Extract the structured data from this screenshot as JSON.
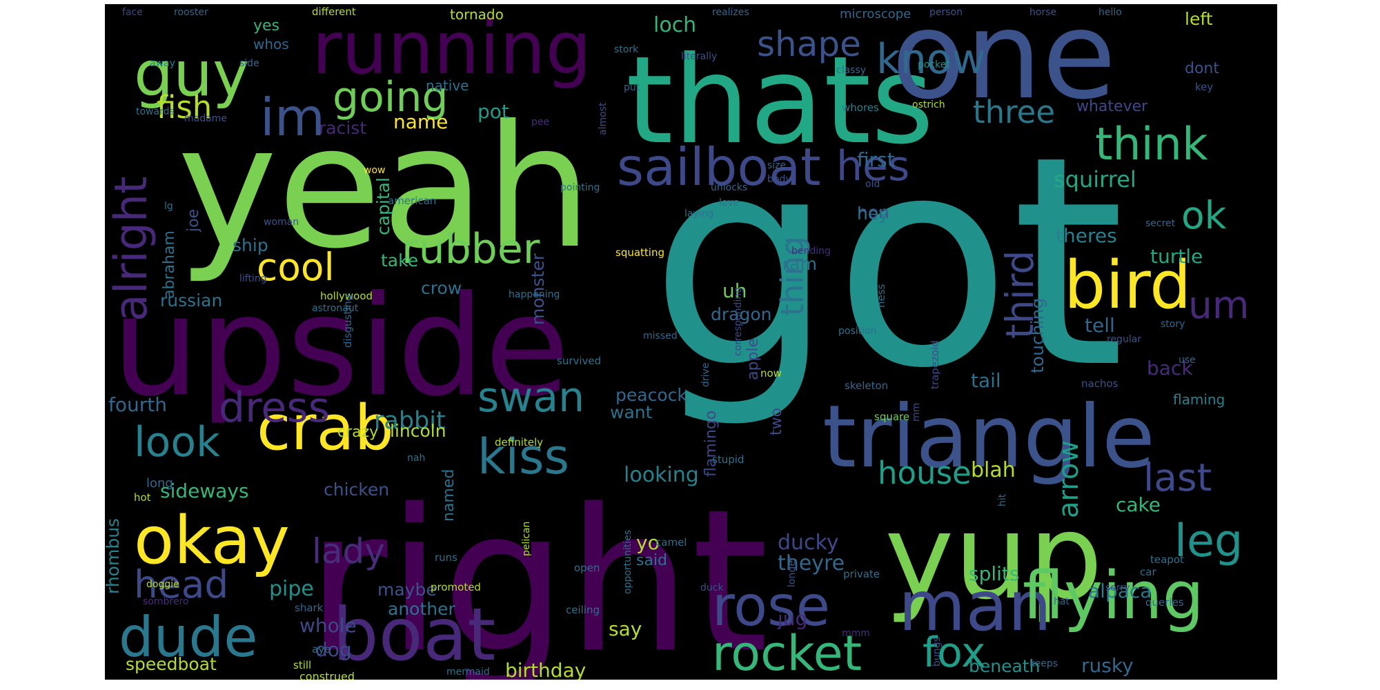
{
  "words": [
    {
      "text": "got",
      "color": "#21918c"
    },
    {
      "text": "right",
      "color": "#440154"
    },
    {
      "text": "yeah",
      "color": "#7ad151"
    },
    {
      "text": "upside",
      "color": "#440154"
    },
    {
      "text": "thats",
      "color": "#22a884"
    },
    {
      "text": "one",
      "color": "#3b528b"
    },
    {
      "text": "yup",
      "color": "#7ad151"
    },
    {
      "text": "triangle",
      "color": "#3b528b"
    },
    {
      "text": "boat",
      "color": "#482878"
    },
    {
      "text": "running",
      "color": "#440154"
    },
    {
      "text": "man",
      "color": "#3e4989"
    },
    {
      "text": "flying",
      "color": "#5ec962"
    },
    {
      "text": "bird",
      "color": "#fde725"
    },
    {
      "text": "okay",
      "color": "#fde725"
    },
    {
      "text": "guy",
      "color": "#7ad151"
    },
    {
      "text": "crab",
      "color": "#fde725"
    },
    {
      "text": "rose",
      "color": "#3e4989"
    },
    {
      "text": "dude",
      "color": "#2a788e"
    },
    {
      "text": "sailboat",
      "color": "#3e4989"
    },
    {
      "text": "rocket",
      "color": "#35b779"
    },
    {
      "text": "im",
      "color": "#3b528b"
    },
    {
      "text": "kiss",
      "color": "#2a788e"
    },
    {
      "text": "know",
      "color": "#31688e"
    },
    {
      "text": "think",
      "color": "#35b779"
    },
    {
      "text": "swan",
      "color": "#26828e"
    },
    {
      "text": "fox",
      "color": "#1f9e89"
    },
    {
      "text": "going",
      "color": "#6ece58"
    },
    {
      "text": "rubber",
      "color": "#6ece58"
    },
    {
      "text": "dress",
      "color": "#482878"
    },
    {
      "text": "look",
      "color": "#26828e"
    },
    {
      "text": "leg",
      "color": "#21918c"
    },
    {
      "text": "hes",
      "color": "#3e4989"
    },
    {
      "text": "cool",
      "color": "#fde725"
    },
    {
      "text": "alright",
      "color": "#482878"
    },
    {
      "text": "head",
      "color": "#3e4989"
    },
    {
      "text": "last",
      "color": "#3e4989"
    },
    {
      "text": "house",
      "color": "#1f9e89"
    },
    {
      "text": "shape",
      "color": "#3b528b"
    },
    {
      "text": "lady",
      "color": "#472c7a"
    },
    {
      "text": "third",
      "color": "#3e4989"
    },
    {
      "text": "ok",
      "color": "#22a884"
    },
    {
      "text": "um",
      "color": "#482878"
    },
    {
      "text": "three",
      "color": "#2a788e"
    },
    {
      "text": "arrow",
      "color": "#1f9e89"
    },
    {
      "text": "thing",
      "color": "#2c728e"
    },
    {
      "text": "fish",
      "color": "#b5de2b"
    },
    {
      "text": "rabbit",
      "color": "#26828e"
    },
    {
      "text": "squirrel",
      "color": "#22a884"
    },
    {
      "text": "birthday",
      "color": "#b5de2b"
    },
    {
      "text": "speedboat",
      "color": "#b5de2b"
    },
    {
      "text": "sideways",
      "color": "#35b779"
    },
    {
      "text": "whole",
      "color": "#3e4989"
    },
    {
      "text": "dog",
      "color": "#3e4989"
    },
    {
      "text": "looking",
      "color": "#26828e"
    },
    {
      "text": "ducky",
      "color": "#3e4989"
    },
    {
      "text": "theyre",
      "color": "#31688e"
    },
    {
      "text": "splits",
      "color": "#35b779"
    },
    {
      "text": "alpaca",
      "color": "#2a788e"
    },
    {
      "text": "rusky",
      "color": "#31688e"
    },
    {
      "text": "beneath",
      "color": "#21918c"
    },
    {
      "text": "jug",
      "color": "#482878"
    },
    {
      "text": "say",
      "color": "#b5de2b"
    },
    {
      "text": "another",
      "color": "#2c728e"
    },
    {
      "text": "maybe",
      "color": "#3b528b"
    },
    {
      "text": "pipe",
      "color": "#21918c"
    },
    {
      "text": "fourth",
      "color": "#31688e"
    },
    {
      "text": "rhombus",
      "color": "#26828e"
    },
    {
      "text": "tail",
      "color": "#2c728e"
    },
    {
      "text": "blah",
      "color": "#b5de2b"
    },
    {
      "text": "cake",
      "color": "#35b779"
    },
    {
      "text": "back",
      "color": "#472c7a"
    },
    {
      "text": "tell",
      "color": "#31688e"
    },
    {
      "text": "turtle",
      "color": "#22a884"
    },
    {
      "text": "theres",
      "color": "#26828e"
    },
    {
      "text": "touching",
      "color": "#31688e"
    },
    {
      "text": "peacock",
      "color": "#31688e"
    },
    {
      "text": "want",
      "color": "#2c728e"
    },
    {
      "text": "dragon",
      "color": "#31688e"
    },
    {
      "text": "uh",
      "color": "#6ece58"
    },
    {
      "text": "ram",
      "color": "#2c728e"
    },
    {
      "text": "monster",
      "color": "#3b528b"
    },
    {
      "text": "crow",
      "color": "#2c728e"
    },
    {
      "text": "take",
      "color": "#35b779"
    },
    {
      "text": "russian",
      "color": "#2c728e"
    },
    {
      "text": "ship",
      "color": "#2c728e"
    },
    {
      "text": "lincoln",
      "color": "#b5de2b"
    },
    {
      "text": "crazy",
      "color": "#b5de2b"
    },
    {
      "text": "chicken",
      "color": "#3b528b"
    },
    {
      "text": "name",
      "color": "#fde725"
    },
    {
      "text": "pot",
      "color": "#1f9e89"
    },
    {
      "text": "racist",
      "color": "#482878"
    },
    {
      "text": "capital",
      "color": "#35b779"
    },
    {
      "text": "abraham",
      "color": "#2c728e"
    },
    {
      "text": "joe",
      "color": "#3b528b"
    },
    {
      "text": "first",
      "color": "#31688e"
    },
    {
      "text": "non",
      "color": "#3b528b"
    },
    {
      "text": "hey",
      "color": "#2c728e"
    },
    {
      "text": "whatever",
      "color": "#3e4989"
    },
    {
      "text": "left",
      "color": "#b5de2b"
    },
    {
      "text": "dont",
      "color": "#3b528b"
    },
    {
      "text": "loch",
      "color": "#35b779"
    },
    {
      "text": "native",
      "color": "#2c728e"
    },
    {
      "text": "yes",
      "color": "#35b779"
    },
    {
      "text": "whos",
      "color": "#31688e"
    },
    {
      "text": "tornado",
      "color": "#b5de2b"
    },
    {
      "text": "microscope",
      "color": "#31688e"
    },
    {
      "text": "apple",
      "color": "#3e4989"
    },
    {
      "text": "two",
      "color": "#3e4989"
    },
    {
      "text": "flamingo",
      "color": "#3e4989"
    },
    {
      "text": "named",
      "color": "#2c728e"
    },
    {
      "text": "yo",
      "color": "#b5de2b"
    },
    {
      "text": "said",
      "color": "#2c728e"
    },
    {
      "text": "flaming",
      "color": "#26828e"
    },
    {
      "text": "long",
      "color": "#31688e"
    },
    {
      "text": "different",
      "color": "#b5de2b"
    },
    {
      "text": "rooster",
      "color": "#31688e"
    },
    {
      "text": "face",
      "color": "#3e4989"
    },
    {
      "text": "realizes",
      "color": "#31688e"
    },
    {
      "text": "person",
      "color": "#3b528b"
    },
    {
      "text": "horse",
      "color": "#3b528b"
    },
    {
      "text": "hello",
      "color": "#31688e"
    },
    {
      "text": "side",
      "color": "#31688e"
    },
    {
      "text": "away",
      "color": "#26828e"
    },
    {
      "text": "stork",
      "color": "#2c728e"
    },
    {
      "text": "literally",
      "color": "#3b528b"
    },
    {
      "text": "classy",
      "color": "#31688e"
    },
    {
      "text": "pocket",
      "color": "#21918c"
    },
    {
      "text": "key",
      "color": "#3b528b"
    },
    {
      "text": "ostrich",
      "color": "#b5de2b"
    },
    {
      "text": "whores",
      "color": "#26828e"
    },
    {
      "text": "put",
      "color": "#31688e"
    },
    {
      "text": "towards",
      "color": "#2c728e"
    },
    {
      "text": "madame",
      "color": "#3b528b"
    },
    {
      "text": "pee",
      "color": "#472c7a"
    },
    {
      "text": "almost",
      "color": "#3b528b"
    },
    {
      "text": "wow",
      "color": "#fde725"
    },
    {
      "text": "pointing",
      "color": "#2c728e"
    },
    {
      "text": "size",
      "color": "#31688e"
    },
    {
      "text": "body",
      "color": "#3b528b"
    },
    {
      "text": "old",
      "color": "#3b528b"
    },
    {
      "text": "unlocks",
      "color": "#31688e"
    },
    {
      "text": "american",
      "color": "#2c728e"
    },
    {
      "text": "love",
      "color": "#2c728e"
    },
    {
      "text": "lg",
      "color": "#2c728e"
    },
    {
      "text": "laying",
      "color": "#2c728e"
    },
    {
      "text": "secret",
      "color": "#31688e"
    },
    {
      "text": "woman",
      "color": "#3b528b"
    },
    {
      "text": "squatting",
      "color": "#fde725"
    },
    {
      "text": "bending",
      "color": "#472c7a"
    },
    {
      "text": "lifting",
      "color": "#3b528b"
    },
    {
      "text": "hollywood",
      "color": "#b5de2b"
    },
    {
      "text": "happening",
      "color": "#2c728e"
    },
    {
      "text": "astronaut",
      "color": "#2c728e"
    },
    {
      "text": "ness",
      "color": "#2c728e"
    },
    {
      "text": "story",
      "color": "#31688e"
    },
    {
      "text": "regular",
      "color": "#3b528b"
    },
    {
      "text": "missed",
      "color": "#31688e"
    },
    {
      "text": "position",
      "color": "#2c728e"
    },
    {
      "text": "corresponding",
      "color": "#3e4989"
    },
    {
      "text": "disgusting",
      "color": "#31688e"
    },
    {
      "text": "survived",
      "color": "#2c728e"
    },
    {
      "text": "use",
      "color": "#31688e"
    },
    {
      "text": "drive",
      "color": "#31688e"
    },
    {
      "text": "now",
      "color": "#b5de2b"
    },
    {
      "text": "skeleton",
      "color": "#31688e"
    },
    {
      "text": "trapezoid",
      "color": "#3e4989"
    },
    {
      "text": "nachos",
      "color": "#3b528b"
    },
    {
      "text": "definitely",
      "color": "#b5de2b"
    },
    {
      "text": "stupid",
      "color": "#2c728e"
    },
    {
      "text": "nah",
      "color": "#2c728e"
    },
    {
      "text": "square",
      "color": "#6ece58"
    },
    {
      "text": "mm",
      "color": "#3e4989"
    },
    {
      "text": "hit",
      "color": "#31688e"
    },
    {
      "text": "hot",
      "color": "#b5de2b"
    },
    {
      "text": "opportunities",
      "color": "#2c728e"
    },
    {
      "text": "pelican",
      "color": "#b5de2b"
    },
    {
      "text": "camel",
      "color": "#2c728e"
    },
    {
      "text": "runs",
      "color": "#2c728e"
    },
    {
      "text": "longer",
      "color": "#3b528b"
    },
    {
      "text": "teapot",
      "color": "#2c728e"
    },
    {
      "text": "open",
      "color": "#2c728e"
    },
    {
      "text": "private",
      "color": "#2c728e"
    },
    {
      "text": "car",
      "color": "#2c728e"
    },
    {
      "text": "doggie",
      "color": "#b5de2b"
    },
    {
      "text": "promoted",
      "color": "#b5de2b"
    },
    {
      "text": "duck",
      "color": "#3b528b"
    },
    {
      "text": "sorry",
      "color": "#3b528b"
    },
    {
      "text": "sombrero",
      "color": "#472c7a"
    },
    {
      "text": "hat",
      "color": "#31688e"
    },
    {
      "text": "queries",
      "color": "#31688e"
    },
    {
      "text": "shark",
      "color": "#31688e"
    },
    {
      "text": "ceiling",
      "color": "#2c728e"
    },
    {
      "text": "mmm",
      "color": "#472c7a"
    },
    {
      "text": "aye",
      "color": "#2c728e"
    },
    {
      "text": "still",
      "color": "#b5de2b"
    },
    {
      "text": "bungs",
      "color": "#3b528b"
    },
    {
      "text": "keeps",
      "color": "#31688e"
    },
    {
      "text": "construed",
      "color": "#b5de2b"
    },
    {
      "text": "mermaid",
      "color": "#2c728e"
    }
  ]
}
